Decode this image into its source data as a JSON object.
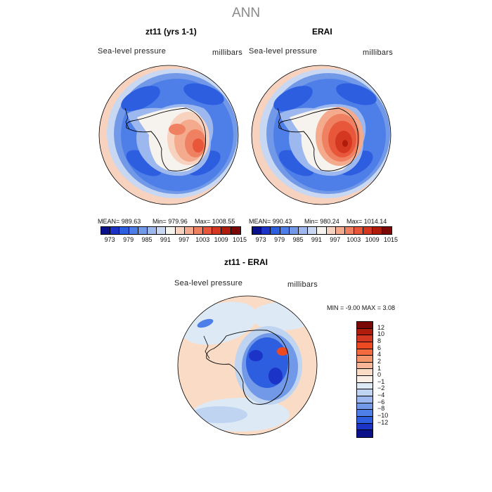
{
  "season": "ANN",
  "panels": [
    {
      "title": "zt11 (yrs 1-1)",
      "variable": "Sea-level pressure",
      "units": "millibars",
      "mean": "MEAN= 989.63",
      "min": "Min= 979.96",
      "max": "Max= 1008.55"
    },
    {
      "title": "ERAI",
      "variable": "Sea-level pressure",
      "units": "millibars",
      "mean": "MEAN= 990.43",
      "min": "Min= 980.24",
      "max": "Max= 1014.14"
    }
  ],
  "colorbar_top": {
    "colors": [
      "#0a0f8a",
      "#1c33c8",
      "#2e5ee0",
      "#4e7ee8",
      "#7199e8",
      "#9db8ee",
      "#c9d8f2",
      "#f6f2ee",
      "#f7d2bf",
      "#f4aa8c",
      "#ef8061",
      "#e8573a",
      "#d43820",
      "#b01c0c",
      "#7a0806"
    ],
    "tick_labels": [
      "973",
      "979",
      "985",
      "991",
      "997",
      "1003",
      "1009",
      "1015"
    ]
  },
  "diff_panel": {
    "title": "zt11 - ERAI",
    "variable": "Sea-level pressure",
    "units": "millibars",
    "min_max": "MIN =   -9.00 MAX =    3.08"
  },
  "colorbar_diff": {
    "colors": [
      "#7a0806",
      "#b01c0c",
      "#d43820",
      "#ee4a22",
      "#f26a3e",
      "#f4956c",
      "#f7b698",
      "#fadbc6",
      "#fbeee4",
      "#ddeaf6",
      "#bfd4f1",
      "#9db8ee",
      "#7199e8",
      "#4e7ee8",
      "#2e5ee0",
      "#1c33c8",
      "#0a0f8a"
    ],
    "tick_labels": [
      "12",
      "10",
      "8",
      "6",
      "4",
      "2",
      "1",
      "0",
      "−1",
      "−2",
      "−4",
      "−6",
      "−8",
      "−10",
      "−12"
    ]
  },
  "map_colors": {
    "ocean_deep": "#2e5ee0",
    "ocean_mid": "#4e7ee8",
    "ocean_light": "#9db8ee",
    "pale": "#d6e4f5",
    "warm": "#f7d2bf",
    "high": "#e8573a",
    "highest": "#c42a12",
    "diff_bg": "#fadbc6",
    "diff_blue": "#bfd4f1",
    "diff_low": "#2e5ee0",
    "diff_lowest": "#1c33c8"
  }
}
